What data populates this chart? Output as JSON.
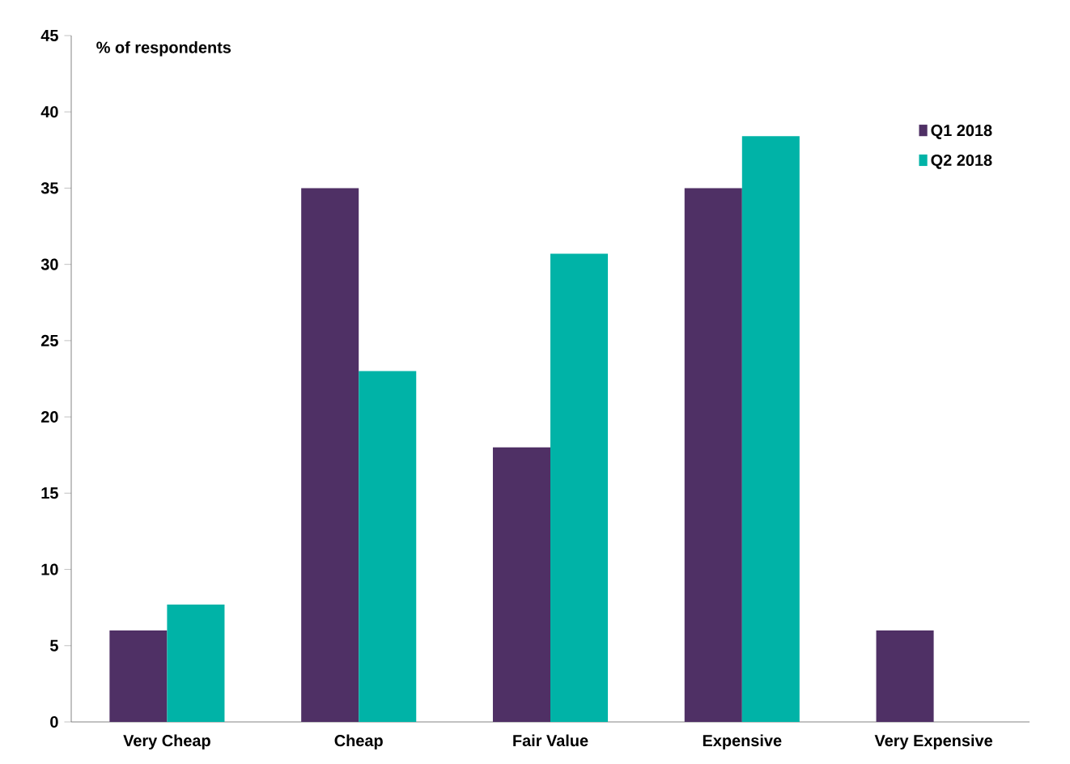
{
  "chart_data": {
    "type": "bar",
    "ylabel": "% of respondents",
    "categories": [
      "Very Cheap",
      "Cheap",
      "Fair Value",
      "Expensive",
      "Very Expensive"
    ],
    "series": [
      {
        "name": "Q1 2018",
        "color": "#4f3065",
        "values": [
          6,
          35,
          18,
          35,
          6
        ]
      },
      {
        "name": "Q2 2018",
        "color": "#00b3a7",
        "values": [
          7.7,
          23,
          30.7,
          38.4,
          null
        ]
      }
    ],
    "ylim": [
      0,
      45
    ],
    "yticks": [
      0,
      5,
      10,
      15,
      20,
      25,
      30,
      35,
      40,
      45
    ],
    "legend": "top right",
    "grid": false
  }
}
